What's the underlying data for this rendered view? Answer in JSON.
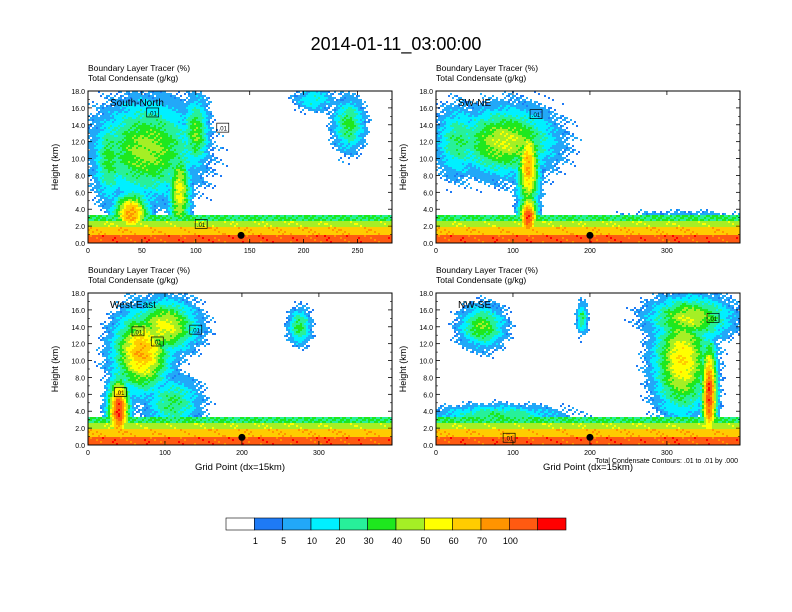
{
  "figure_title": "2014-01-11_03:00:00",
  "footnote": "Total Condensate Contours: .01 to .01 by .000",
  "colorbar": {
    "levels": [
      "1",
      "5",
      "10",
      "20",
      "30",
      "40",
      "50",
      "60",
      "70",
      "100"
    ],
    "colors": [
      "#ffffff",
      "#1e7af5",
      "#22a8f8",
      "#00f0ff",
      "#27f09a",
      "#1ee81e",
      "#a5ef25",
      "#ffff00",
      "#ffcc00",
      "#ff9400",
      "#ff5a11",
      "#ff0000"
    ]
  },
  "chart_data": [
    {
      "type": "heatmap",
      "title_line1": "Boundary Layer Tracer   (%)",
      "title_line2": "Total Condensate   (g/kg)",
      "label": "South-North",
      "ylabel": "Height (km)",
      "xlabel": "",
      "xlim": [
        0,
        282
      ],
      "ylim": [
        0,
        18
      ],
      "xticks": [
        "0",
        "50",
        "100",
        "150",
        "200",
        "250"
      ],
      "yticks": [
        "0.0",
        "2.0",
        "4.0",
        "6.0",
        "8.0",
        "10.0",
        "12.0",
        "14.0",
        "16.0",
        "18.0"
      ],
      "contour_labels": [
        ".01",
        ".01",
        ".01"
      ],
      "marker_x": 142
    },
    {
      "type": "heatmap",
      "title_line1": "Boundary Layer Tracer   (%)",
      "title_line2": "Total Condensate   (g/kg)",
      "label": "SW-NE",
      "ylabel": "Height (km)",
      "xlabel": "",
      "xlim": [
        0,
        395
      ],
      "ylim": [
        0,
        18
      ],
      "xticks": [
        "0",
        "100",
        "200",
        "300"
      ],
      "yticks": [
        "0.0",
        "2.0",
        "4.0",
        "6.0",
        "8.0",
        "10.0",
        "12.0",
        "14.0",
        "16.0",
        "18.0"
      ],
      "contour_labels": [
        ".01"
      ],
      "marker_x": 200
    },
    {
      "type": "heatmap",
      "title_line1": "Boundary Layer Tracer   (%)",
      "title_line2": "Total Condensate   (g/kg)",
      "label": "West-East",
      "ylabel": "Height (km)",
      "xlabel": "Grid Point (dx=15km)",
      "xlim": [
        0,
        395
      ],
      "ylim": [
        0,
        18
      ],
      "xticks": [
        "0",
        "100",
        "200",
        "300"
      ],
      "yticks": [
        "0.0",
        "2.0",
        "4.0",
        "6.0",
        "8.0",
        "10.0",
        "12.0",
        "14.0",
        "16.0",
        "18.0"
      ],
      "contour_labels": [
        ".01",
        ".01",
        ".01",
        ".01"
      ],
      "marker_x": 200
    },
    {
      "type": "heatmap",
      "title_line1": "Boundary Layer Tracer   (%)",
      "title_line2": "Total Condensate   (g/kg)",
      "label": "NW-SE",
      "ylabel": "Height (km)",
      "xlabel": "Grid Point (dx=15km)",
      "xlim": [
        0,
        395
      ],
      "ylim": [
        0,
        18
      ],
      "xticks": [
        "0",
        "100",
        "200",
        "300"
      ],
      "yticks": [
        "0.0",
        "2.0",
        "4.0",
        "6.0",
        "8.0",
        "10.0",
        "12.0",
        "14.0",
        "16.0",
        "18.0"
      ],
      "contour_labels": [
        ".01",
        ".01"
      ],
      "marker_x": 200
    }
  ]
}
